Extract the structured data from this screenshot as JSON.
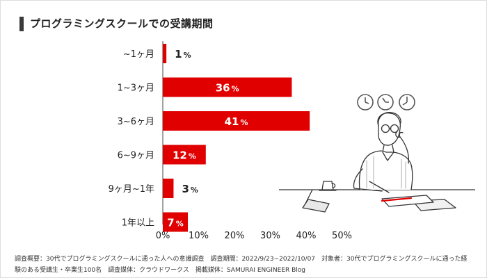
{
  "title": "プログラミングスクールでの受講期間",
  "chart_data": {
    "type": "bar",
    "orientation": "horizontal",
    "title": "プログラミングスクールでの受講期間",
    "categories": [
      "~1ヶ月",
      "1~3ヶ月",
      "3~6ヶ月",
      "6~9ヶ月",
      "9ヶ月~1年",
      "1年以上"
    ],
    "values": [
      1,
      36,
      41,
      12,
      3,
      7
    ],
    "value_unit": "%",
    "xlim": [
      0,
      50
    ],
    "xticks": [
      "0%",
      "10%",
      "20%",
      "30%",
      "40%",
      "50%"
    ],
    "xlabel": "",
    "ylabel": "",
    "bar_color": "#e10000",
    "grid": false
  },
  "footer": {
    "line1": "調査概要：30代でプログラミングスクールに通った人への意識調査　調査期間：2022/9/23~2022/10/07　対象者：30代でプログラミングスクールに通った経",
    "line2": "験のある受講生・卒業生100名　調査媒体：クラウドワークス　掲載媒体：SAMURAI ENGINEER Blog"
  },
  "illustration": {
    "icon": "person-thinking-at-desk-with-clocks"
  }
}
